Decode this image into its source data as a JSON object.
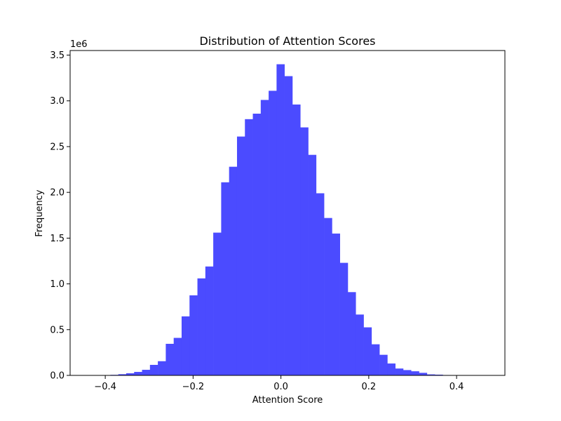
{
  "chart_data": {
    "type": "bar",
    "title": "Distribution of Attention Scores",
    "xlabel": "Attention Score",
    "ylabel": "Frequency",
    "y_offset_label": "1e6",
    "bar_color": "#4b4bff",
    "xlim": [
      -0.48,
      0.51
    ],
    "ylim": [
      0,
      3.55
    ],
    "x_ticks": [
      -0.4,
      -0.2,
      0.0,
      0.2,
      0.4
    ],
    "x_tick_labels": [
      "−0.4",
      "−0.2",
      "0.0",
      "0.2",
      "0.4"
    ],
    "y_ticks": [
      0.0,
      0.5,
      1.0,
      1.5,
      2.0,
      2.5,
      3.0,
      3.5
    ],
    "y_tick_labels": [
      "0.0",
      "0.5",
      "1.0",
      "1.5",
      "2.0",
      "2.5",
      "3.0",
      "3.5"
    ],
    "bin_start": -0.4424,
    "bin_width": 0.01802,
    "values": [
      0.001,
      0.001,
      0.003,
      0.006,
      0.013,
      0.023,
      0.038,
      0.061,
      0.115,
      0.155,
      0.345,
      0.41,
      0.645,
      0.875,
      1.06,
      1.19,
      1.56,
      2.11,
      2.28,
      2.61,
      2.8,
      2.86,
      3.01,
      3.11,
      3.4,
      3.27,
      2.96,
      2.71,
      2.41,
      1.99,
      1.72,
      1.55,
      1.23,
      0.91,
      0.665,
      0.525,
      0.34,
      0.225,
      0.13,
      0.075,
      0.058,
      0.045,
      0.028,
      0.011,
      0.008,
      0.004,
      0.002,
      0.001
    ]
  }
}
